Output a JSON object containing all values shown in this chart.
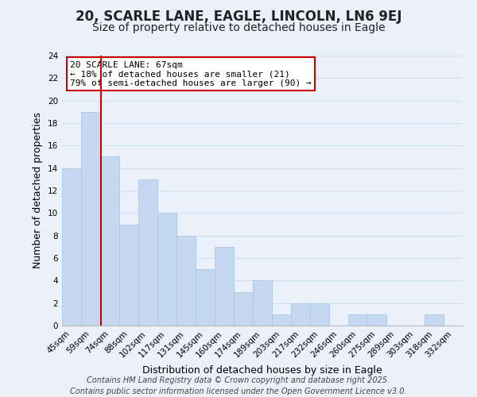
{
  "title": "20, SCARLE LANE, EAGLE, LINCOLN, LN6 9EJ",
  "subtitle": "Size of property relative to detached houses in Eagle",
  "xlabel": "Distribution of detached houses by size in Eagle",
  "ylabel": "Number of detached properties",
  "categories": [
    "45sqm",
    "59sqm",
    "74sqm",
    "88sqm",
    "102sqm",
    "117sqm",
    "131sqm",
    "145sqm",
    "160sqm",
    "174sqm",
    "189sqm",
    "203sqm",
    "217sqm",
    "232sqm",
    "246sqm",
    "260sqm",
    "275sqm",
    "289sqm",
    "303sqm",
    "318sqm",
    "332sqm"
  ],
  "values": [
    14,
    19,
    15,
    9,
    13,
    10,
    8,
    5,
    7,
    3,
    4,
    1,
    2,
    2,
    0,
    1,
    1,
    0,
    0,
    1,
    0
  ],
  "bar_color": "#c5d8f0",
  "bar_edge_color": "#aec6e8",
  "grid_color": "#d0dff0",
  "background_color": "#eaf1fb",
  "vline_x": 1.53,
  "vline_color": "#cc0000",
  "annotation_title": "20 SCARLE LANE: 67sqm",
  "annotation_line2": "← 18% of detached houses are smaller (21)",
  "annotation_line3": "79% of semi-detached houses are larger (90) →",
  "annotation_box_edgecolor": "#cc0000",
  "annotation_box_facecolor": "#ffffff",
  "ylim": [
    0,
    24
  ],
  "yticks": [
    0,
    2,
    4,
    6,
    8,
    10,
    12,
    14,
    16,
    18,
    20,
    22,
    24
  ],
  "footer_line1": "Contains HM Land Registry data © Crown copyright and database right 2025.",
  "footer_line2": "Contains public sector information licensed under the Open Government Licence v3.0.",
  "title_fontsize": 12,
  "subtitle_fontsize": 10,
  "axis_label_fontsize": 9,
  "tick_fontsize": 7.5,
  "footer_fontsize": 7,
  "annotation_fontsize": 8
}
